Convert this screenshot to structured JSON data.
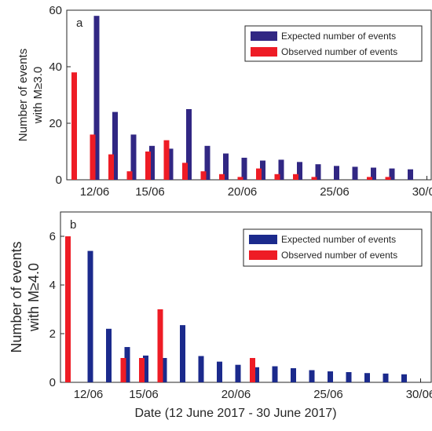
{
  "chart_data": [
    {
      "type": "bar",
      "panel_label": "a",
      "ylabel": [
        "Number of events",
        "with M≥3.0"
      ],
      "ylim": [
        0,
        60
      ],
      "yticks": [
        0,
        20,
        40,
        60
      ],
      "xticks": [
        {
          "date": "2017-06-12",
          "label": "12/06"
        },
        {
          "date": "2017-06-15",
          "label": "15/06"
        },
        {
          "date": "2017-06-20",
          "label": "20/06"
        },
        {
          "date": "2017-06-25",
          "label": "25/06"
        },
        {
          "date": "2017-06-30",
          "label": "30/06"
        }
      ],
      "legend_position": "top-right",
      "series": [
        {
          "name": "Expected number of events",
          "color": "#312783",
          "points": [
            {
              "date": "2017-06-12",
              "value": 58
            },
            {
              "date": "2017-06-13",
              "value": 24
            },
            {
              "date": "2017-06-14",
              "value": 16
            },
            {
              "date": "2017-06-15",
              "value": 12
            },
            {
              "date": "2017-06-16",
              "value": 11
            },
            {
              "date": "2017-06-17",
              "value": 25
            },
            {
              "date": "2017-06-18",
              "value": 12
            },
            {
              "date": "2017-06-19",
              "value": 9.3
            },
            {
              "date": "2017-06-20",
              "value": 7.8
            },
            {
              "date": "2017-06-21",
              "value": 6.8
            },
            {
              "date": "2017-06-22",
              "value": 7.1
            },
            {
              "date": "2017-06-23",
              "value": 6.3
            },
            {
              "date": "2017-06-24",
              "value": 5.5
            },
            {
              "date": "2017-06-25",
              "value": 4.9
            },
            {
              "date": "2017-06-26",
              "value": 4.6
            },
            {
              "date": "2017-06-27",
              "value": 4.3
            },
            {
              "date": "2017-06-28",
              "value": 4.0
            },
            {
              "date": "2017-06-29",
              "value": 3.7
            }
          ]
        },
        {
          "name": "Observed number of events",
          "color": "#ee1c25",
          "points": [
            {
              "date": "2017-06-11",
              "value": 38
            },
            {
              "date": "2017-06-12",
              "value": 16
            },
            {
              "date": "2017-06-13",
              "value": 9
            },
            {
              "date": "2017-06-14",
              "value": 3
            },
            {
              "date": "2017-06-15",
              "value": 10
            },
            {
              "date": "2017-06-16",
              "value": 14
            },
            {
              "date": "2017-06-17",
              "value": 6
            },
            {
              "date": "2017-06-18",
              "value": 3
            },
            {
              "date": "2017-06-19",
              "value": 2
            },
            {
              "date": "2017-06-20",
              "value": 1
            },
            {
              "date": "2017-06-21",
              "value": 4
            },
            {
              "date": "2017-06-22",
              "value": 2
            },
            {
              "date": "2017-06-23",
              "value": 2
            },
            {
              "date": "2017-06-24",
              "value": 1
            },
            {
              "date": "2017-06-27",
              "value": 1
            },
            {
              "date": "2017-06-28",
              "value": 1
            }
          ]
        }
      ]
    },
    {
      "type": "bar",
      "panel_label": "b",
      "ylabel": [
        "Number of events",
        "with M≥4.0"
      ],
      "ylim": [
        0,
        7
      ],
      "yticks": [
        0,
        2,
        4,
        6
      ],
      "xticks": [
        {
          "date": "2017-06-12",
          "label": "12/06"
        },
        {
          "date": "2017-06-15",
          "label": "15/06"
        },
        {
          "date": "2017-06-20",
          "label": "20/06"
        },
        {
          "date": "2017-06-25",
          "label": "25/06"
        },
        {
          "date": "2017-06-30",
          "label": "30/06"
        }
      ],
      "legend_position": "top-right",
      "series": [
        {
          "name": "Expected number of events",
          "color": "#1b2a8c",
          "points": [
            {
              "date": "2017-06-12",
              "value": 5.4
            },
            {
              "date": "2017-06-13",
              "value": 2.2
            },
            {
              "date": "2017-06-14",
              "value": 1.45
            },
            {
              "date": "2017-06-15",
              "value": 1.1
            },
            {
              "date": "2017-06-16",
              "value": 1.0
            },
            {
              "date": "2017-06-17",
              "value": 2.35
            },
            {
              "date": "2017-06-18",
              "value": 1.08
            },
            {
              "date": "2017-06-19",
              "value": 0.85
            },
            {
              "date": "2017-06-20",
              "value": 0.72
            },
            {
              "date": "2017-06-21",
              "value": 0.62
            },
            {
              "date": "2017-06-22",
              "value": 0.66
            },
            {
              "date": "2017-06-23",
              "value": 0.58
            },
            {
              "date": "2017-06-24",
              "value": 0.5
            },
            {
              "date": "2017-06-25",
              "value": 0.45
            },
            {
              "date": "2017-06-26",
              "value": 0.42
            },
            {
              "date": "2017-06-27",
              "value": 0.38
            },
            {
              "date": "2017-06-28",
              "value": 0.36
            },
            {
              "date": "2017-06-29",
              "value": 0.33
            }
          ]
        },
        {
          "name": "Observed number of events",
          "color": "#ee1c25",
          "points": [
            {
              "date": "2017-06-11",
              "value": 6
            },
            {
              "date": "2017-06-14",
              "value": 1
            },
            {
              "date": "2017-06-15",
              "value": 1
            },
            {
              "date": "2017-06-16",
              "value": 3
            },
            {
              "date": "2017-06-21",
              "value": 1
            }
          ]
        }
      ]
    }
  ],
  "xlabel": "Date (12 June 2017 - 30 June 2017)"
}
